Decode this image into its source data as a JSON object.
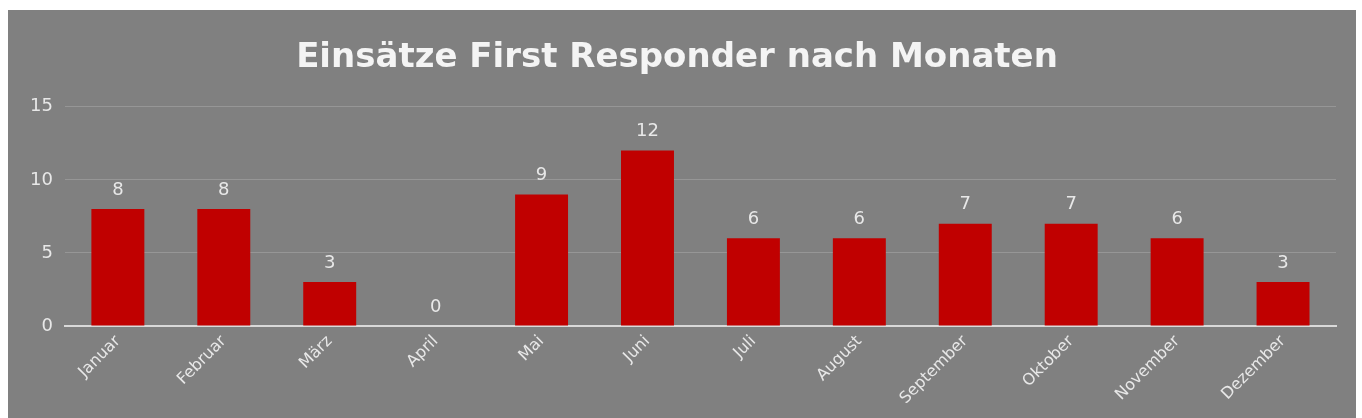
{
  "chart_data": {
    "type": "bar",
    "title": "Einsätze First Responder nach Monaten",
    "categories": [
      "Januar",
      "Februar",
      "März",
      "April",
      "Mai",
      "Juni",
      "Juli",
      "August",
      "September",
      "Oktober",
      "November",
      "Dezember"
    ],
    "values": [
      8,
      8,
      3,
      0,
      9,
      12,
      6,
      6,
      7,
      7,
      6,
      3
    ],
    "color": "#c00000",
    "ylim": [
      0,
      15
    ],
    "yticks": [
      0,
      5,
      10,
      15
    ],
    "grid": "y",
    "data_labels": true,
    "legend": false
  }
}
